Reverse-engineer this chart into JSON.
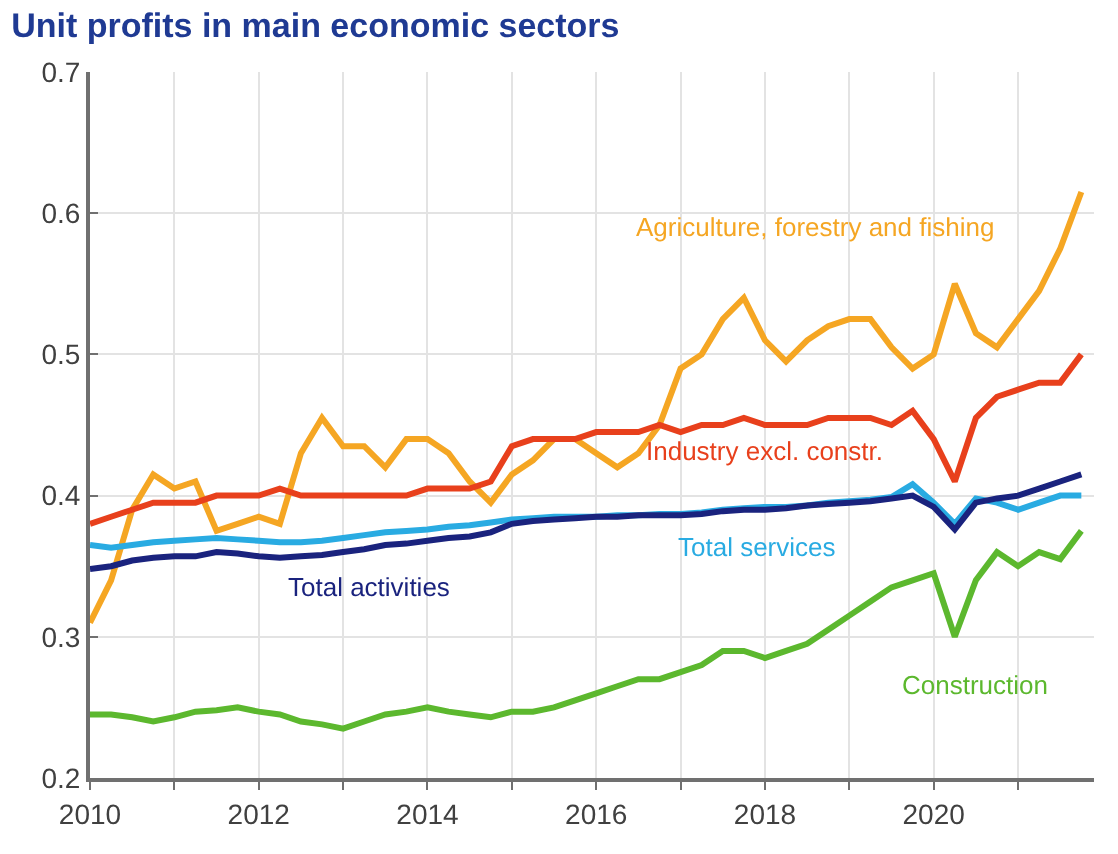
{
  "chart_data": {
    "type": "line",
    "title": "Unit profits in main economic sectors",
    "x": [
      2010,
      2010.25,
      2010.5,
      2010.75,
      2011,
      2011.25,
      2011.5,
      2011.75,
      2012,
      2012.25,
      2012.5,
      2012.75,
      2013,
      2013.25,
      2013.5,
      2013.75,
      2014,
      2014.25,
      2014.5,
      2014.75,
      2015,
      2015.25,
      2015.5,
      2015.75,
      2016,
      2016.25,
      2016.5,
      2016.75,
      2017,
      2017.25,
      2017.5,
      2017.75,
      2018,
      2018.25,
      2018.5,
      2018.75,
      2019,
      2019.25,
      2019.5,
      2019.75,
      2020,
      2020.25,
      2020.5,
      2020.75,
      2021,
      2021.25,
      2021.5,
      2021.75
    ],
    "series": [
      {
        "name": "Agriculture, forestry and fishing",
        "color": "#f5a623",
        "values": [
          0.31,
          0.34,
          0.39,
          0.415,
          0.405,
          0.41,
          0.375,
          0.38,
          0.385,
          0.38,
          0.43,
          0.455,
          0.435,
          0.435,
          0.42,
          0.44,
          0.44,
          0.43,
          0.41,
          0.395,
          0.415,
          0.425,
          0.44,
          0.44,
          0.43,
          0.42,
          0.43,
          0.45,
          0.49,
          0.5,
          0.525,
          0.54,
          0.51,
          0.495,
          0.51,
          0.52,
          0.525,
          0.525,
          0.505,
          0.49,
          0.5,
          0.55,
          0.515,
          0.505,
          0.525,
          0.545,
          0.575,
          0.615
        ]
      },
      {
        "name": "Industry excl. constr.",
        "color": "#e8401c",
        "values": [
          0.38,
          0.385,
          0.39,
          0.395,
          0.395,
          0.395,
          0.4,
          0.4,
          0.4,
          0.405,
          0.4,
          0.4,
          0.4,
          0.4,
          0.4,
          0.4,
          0.405,
          0.405,
          0.405,
          0.41,
          0.435,
          0.44,
          0.44,
          0.44,
          0.445,
          0.445,
          0.445,
          0.45,
          0.445,
          0.45,
          0.45,
          0.455,
          0.45,
          0.45,
          0.45,
          0.455,
          0.455,
          0.455,
          0.45,
          0.46,
          0.44,
          0.41,
          0.455,
          0.47,
          0.475,
          0.48,
          0.48,
          0.5
        ]
      },
      {
        "name": "Total services",
        "color": "#29abe2",
        "values": [
          0.365,
          0.363,
          0.365,
          0.367,
          0.368,
          0.369,
          0.37,
          0.369,
          0.368,
          0.367,
          0.367,
          0.368,
          0.37,
          0.372,
          0.374,
          0.375,
          0.376,
          0.378,
          0.379,
          0.381,
          0.383,
          0.384,
          0.385,
          0.385,
          0.385,
          0.386,
          0.386,
          0.387,
          0.387,
          0.388,
          0.39,
          0.391,
          0.392,
          0.392,
          0.393,
          0.395,
          0.396,
          0.397,
          0.399,
          0.408,
          0.395,
          0.38,
          0.398,
          0.395,
          0.39,
          0.395,
          0.4,
          0.4
        ]
      },
      {
        "name": "Total activities",
        "color": "#1a237e",
        "values": [
          0.348,
          0.35,
          0.354,
          0.356,
          0.357,
          0.357,
          0.36,
          0.359,
          0.357,
          0.356,
          0.357,
          0.358,
          0.36,
          0.362,
          0.365,
          0.366,
          0.368,
          0.37,
          0.371,
          0.374,
          0.38,
          0.382,
          0.383,
          0.384,
          0.385,
          0.385,
          0.386,
          0.386,
          0.386,
          0.387,
          0.389,
          0.39,
          0.39,
          0.391,
          0.393,
          0.394,
          0.395,
          0.396,
          0.398,
          0.4,
          0.392,
          0.376,
          0.395,
          0.398,
          0.4,
          0.405,
          0.41,
          0.415
        ]
      },
      {
        "name": "Construction",
        "color": "#5cb82e",
        "values": [
          0.245,
          0.245,
          0.243,
          0.24,
          0.243,
          0.247,
          0.248,
          0.25,
          0.247,
          0.245,
          0.24,
          0.238,
          0.235,
          0.24,
          0.245,
          0.247,
          0.25,
          0.247,
          0.245,
          0.243,
          0.247,
          0.247,
          0.25,
          0.255,
          0.26,
          0.265,
          0.27,
          0.27,
          0.275,
          0.28,
          0.29,
          0.29,
          0.285,
          0.29,
          0.295,
          0.305,
          0.315,
          0.325,
          0.335,
          0.34,
          0.345,
          0.3,
          0.34,
          0.36,
          0.35,
          0.36,
          0.355,
          0.375
        ]
      }
    ],
    "xlim": [
      2010,
      2021.9
    ],
    "xticks": [
      2010,
      {
        "value": 2011,
        "label": null
      },
      2012,
      {
        "value": 2013,
        "label": null
      },
      2014,
      {
        "value": 2015,
        "label": null
      },
      2016,
      {
        "value": 2017,
        "label": null
      },
      2018,
      {
        "value": 2019,
        "label": null
      },
      2020,
      {
        "value": 2021,
        "label": null
      }
    ],
    "ylim": [
      0.2,
      0.7
    ],
    "yticks": [
      0.2,
      0.3,
      0.4,
      0.5,
      0.6,
      0.7
    ],
    "grid": true,
    "legend": false,
    "marker": "none",
    "line_style": "solid"
  }
}
